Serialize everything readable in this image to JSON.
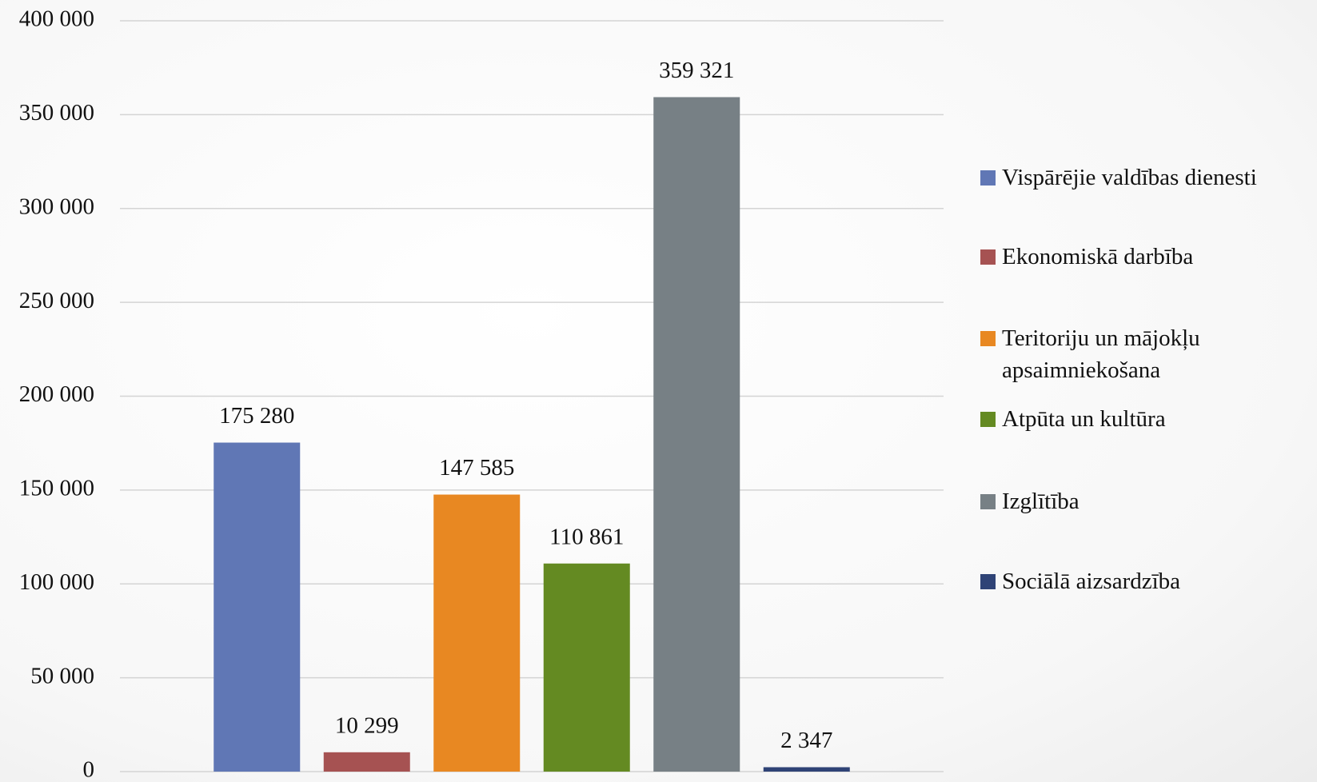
{
  "chart_data": {
    "type": "bar",
    "categories": [
      null
    ],
    "series": [
      {
        "name": "Vispārējie valdības dienesti",
        "color": "#6077b5",
        "values": [
          175280
        ],
        "value_labels": [
          "175 280"
        ]
      },
      {
        "name": "Ekonomiskā darbība",
        "color": "#a65252",
        "values": [
          10299
        ],
        "value_labels": [
          "10 299"
        ]
      },
      {
        "name": "Teritoriju un mājokļu apsaimniekošana",
        "color": "#e88822",
        "values": [
          147585
        ],
        "value_labels": [
          "147 585"
        ]
      },
      {
        "name": "Atpūta un kultūra",
        "color": "#648a22",
        "values": [
          110861
        ],
        "value_labels": [
          "110 861"
        ]
      },
      {
        "name": "Izglītība",
        "color": "#778085",
        "values": [
          359321
        ],
        "value_labels": [
          "359 321"
        ]
      },
      {
        "name": "Sociālā aizsardzība",
        "color": "#2f4376",
        "values": [
          2347
        ],
        "value_labels": [
          "2 347"
        ]
      }
    ],
    "ylim": [
      0,
      400000
    ],
    "yticks": [
      0,
      {
        "value": 50000,
        "label": "50 000"
      },
      {
        "value": 100000,
        "label": "100 000"
      },
      {
        "value": 150000,
        "label": "150 000"
      },
      {
        "value": 200000,
        "label": "200 000"
      },
      {
        "value": 250000,
        "label": "250 000"
      },
      {
        "value": 300000,
        "label": "300 000"
      },
      {
        "value": 350000,
        "label": "350 000"
      },
      {
        "value": 400000,
        "label": "400 000"
      }
    ],
    "grid": true,
    "legend": "right"
  }
}
